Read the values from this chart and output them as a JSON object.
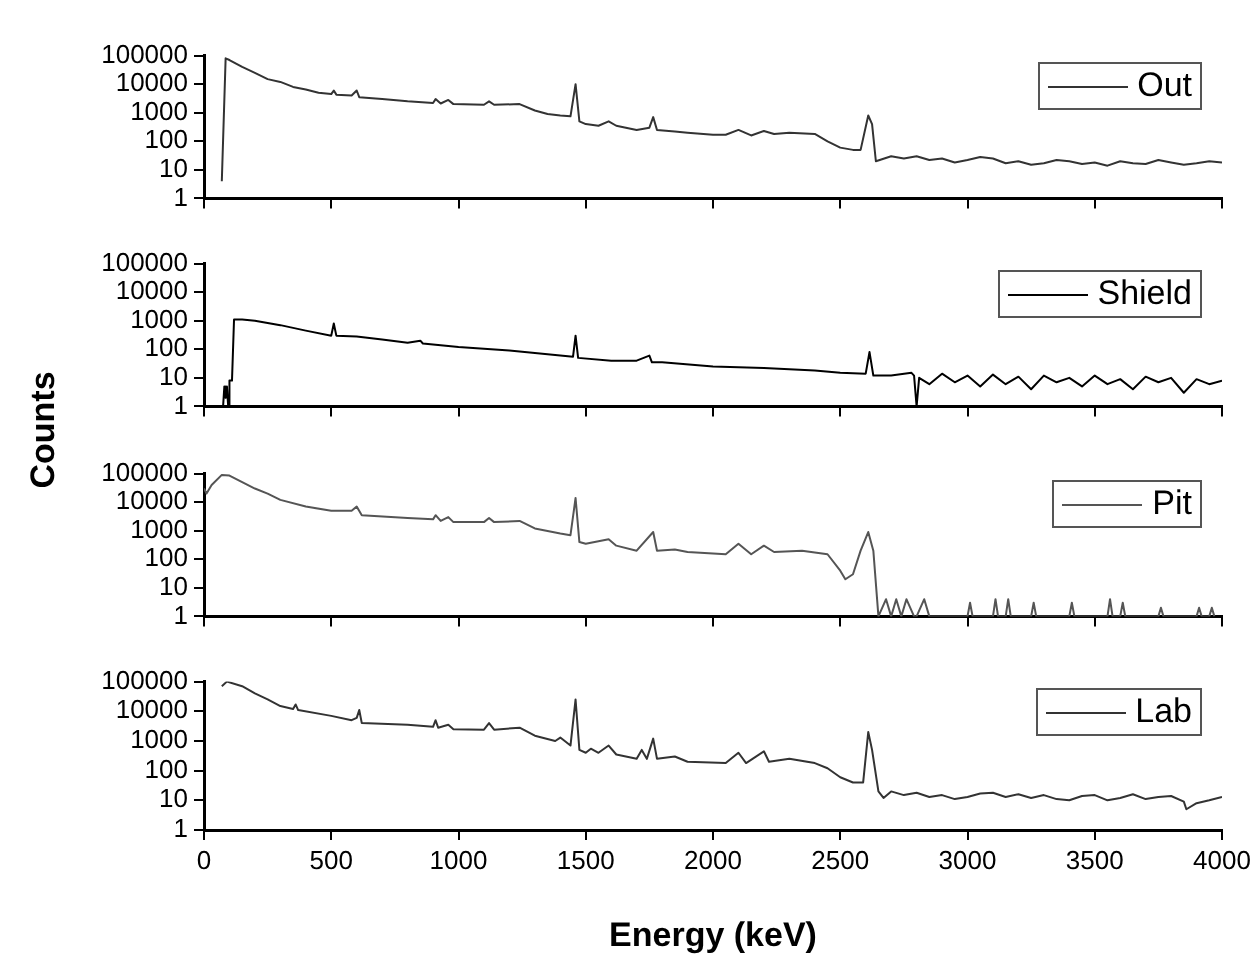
{
  "chart_data": [
    {
      "type": "line",
      "ylabel": "Counts",
      "xlim": [
        0,
        4000
      ],
      "xticks": [
        0,
        500,
        1000,
        1500,
        2000,
        2500,
        3000,
        3500,
        4000
      ],
      "ylim": [
        1,
        100000
      ],
      "yticks": [
        1,
        10,
        100,
        1000,
        10000,
        100000
      ],
      "log": "y",
      "legend": "top right",
      "tick_labels": "y",
      "marker": "none",
      "line_style": "solid",
      "series": [
        {
          "name": "Out",
          "color": "#333333",
          "x": [
            70,
            85,
            100,
            150,
            200,
            250,
            300,
            350,
            400,
            450,
            500,
            510,
            520,
            580,
            600,
            610,
            700,
            800,
            900,
            910,
            930,
            960,
            980,
            1100,
            1120,
            1140,
            1240,
            1300,
            1350,
            1400,
            1440,
            1460,
            1475,
            1500,
            1550,
            1590,
            1620,
            1700,
            1750,
            1765,
            1780,
            1850,
            1900,
            2000,
            2050,
            2100,
            2150,
            2200,
            2240,
            2300,
            2400,
            2450,
            2500,
            2550,
            2580,
            2610,
            2625,
            2640,
            2700,
            2750,
            2800,
            2850,
            2900,
            2950,
            3000,
            3050,
            3100,
            3150,
            3200,
            3250,
            3300,
            3350,
            3400,
            3450,
            3500,
            3550,
            3600,
            3650,
            3700,
            3750,
            3800,
            3850,
            3900,
            3950,
            4000
          ],
          "values": [
            4,
            80000,
            70000,
            40000,
            25000,
            15000,
            12000,
            8000,
            6500,
            5000,
            4500,
            6000,
            4300,
            4000,
            6000,
            3500,
            3000,
            2500,
            2200,
            3000,
            2100,
            2800,
            2000,
            1900,
            2500,
            1900,
            2000,
            1200,
            900,
            800,
            750,
            10000,
            500,
            400,
            350,
            500,
            350,
            250,
            300,
            700,
            250,
            220,
            200,
            170,
            170,
            250,
            160,
            230,
            180,
            200,
            180,
            100,
            60,
            50,
            50,
            800,
            400,
            20,
            30,
            25,
            30,
            22,
            25,
            18,
            22,
            28,
            25,
            17,
            20,
            15,
            17,
            22,
            20,
            16,
            18,
            14,
            20,
            17,
            16,
            22,
            18,
            15,
            17,
            20,
            18
          ]
        }
      ]
    },
    {
      "type": "line",
      "xlim": [
        0,
        4000
      ],
      "xticks": [
        0,
        500,
        1000,
        1500,
        2000,
        2500,
        3000,
        3500,
        4000
      ],
      "ylim": [
        1,
        100000
      ],
      "yticks": [
        1,
        10,
        100,
        1000,
        10000,
        100000
      ],
      "log": "y",
      "legend": "top right",
      "tick_labels": "y",
      "marker": "none",
      "line_style": "solid",
      "series": [
        {
          "name": "Shield",
          "color": "#000000",
          "x": [
            75,
            80,
            85,
            90,
            95,
            100,
            110,
            118,
            150,
            200,
            300,
            400,
            500,
            510,
            520,
            600,
            700,
            800,
            850,
            860,
            1000,
            1200,
            1400,
            1450,
            1460,
            1470,
            1600,
            1700,
            1750,
            1760,
            1800,
            2000,
            2200,
            2400,
            2500,
            2600,
            2615,
            2630,
            2700,
            2780,
            2790,
            2800,
            2810,
            2850,
            2900,
            2950,
            3000,
            3050,
            3100,
            3150,
            3200,
            3250,
            3300,
            3350,
            3400,
            3450,
            3500,
            3550,
            3600,
            3650,
            3700,
            3750,
            3800,
            3850,
            3900,
            3950,
            4000
          ],
          "values": [
            1,
            5,
            2,
            5,
            1,
            8,
            8,
            1100,
            1100,
            1000,
            700,
            450,
            300,
            800,
            300,
            280,
            220,
            170,
            200,
            160,
            120,
            90,
            60,
            55,
            300,
            50,
            40,
            40,
            60,
            35,
            35,
            25,
            22,
            18,
            15,
            14,
            80,
            12,
            12,
            15,
            12,
            1,
            10,
            6,
            14,
            7,
            12,
            5,
            13,
            6,
            11,
            4,
            12,
            7,
            10,
            5,
            12,
            6,
            9,
            4,
            11,
            7,
            10,
            3,
            9,
            6,
            8
          ]
        }
      ]
    },
    {
      "type": "line",
      "xlim": [
        0,
        4000
      ],
      "xticks": [
        0,
        500,
        1000,
        1500,
        2000,
        2500,
        3000,
        3500,
        4000
      ],
      "ylim": [
        1,
        100000
      ],
      "yticks": [
        1,
        10,
        100,
        1000,
        10000,
        100000
      ],
      "log": "y",
      "legend": "top right",
      "tick_labels": "y",
      "marker": "none",
      "line_style": "solid",
      "series": [
        {
          "name": "Pit",
          "color": "#555555",
          "x": [
            0,
            10,
            30,
            70,
            100,
            150,
            200,
            250,
            300,
            400,
            500,
            580,
            600,
            620,
            800,
            900,
            910,
            930,
            960,
            980,
            1100,
            1120,
            1140,
            1240,
            1300,
            1400,
            1440,
            1460,
            1475,
            1500,
            1590,
            1620,
            1700,
            1765,
            1780,
            1850,
            1900,
            2050,
            2100,
            2150,
            2200,
            2240,
            2350,
            2450,
            2500,
            2520,
            2550,
            2580,
            2610,
            2630,
            2650,
            2680,
            2700,
            2720,
            2740,
            2760,
            2790,
            2800,
            2830,
            2850,
            3000,
            3010,
            3020,
            3100,
            3110,
            3120,
            3150,
            3160,
            3170,
            3250,
            3260,
            3270,
            3400,
            3410,
            3420,
            3550,
            3560,
            3570,
            3600,
            3610,
            3620,
            3750,
            3760,
            3770,
            3900,
            3910,
            3920,
            3950,
            3960,
            3970
          ],
          "values": [
            30000,
            20000,
            40000,
            90000,
            85000,
            50000,
            30000,
            20000,
            12000,
            7000,
            5000,
            5000,
            7000,
            3500,
            2800,
            2500,
            3500,
            2200,
            3000,
            2000,
            2000,
            2800,
            2000,
            2200,
            1200,
            800,
            700,
            14000,
            400,
            350,
            500,
            300,
            200,
            900,
            200,
            220,
            180,
            150,
            350,
            150,
            300,
            180,
            200,
            150,
            40,
            20,
            30,
            200,
            900,
            200,
            1,
            4,
            1,
            4,
            1,
            4,
            1,
            1,
            4,
            1,
            1,
            3,
            1,
            1,
            4,
            1,
            1,
            4,
            1,
            1,
            3,
            1,
            1,
            3,
            1,
            1,
            4,
            1,
            1,
            3,
            1,
            1,
            2,
            1,
            1,
            2,
            1,
            1,
            2,
            1
          ]
        }
      ]
    },
    {
      "type": "line",
      "xlabel": "Energy (keV)",
      "xlim": [
        0,
        4000
      ],
      "xticks": [
        0,
        500,
        1000,
        1500,
        2000,
        2500,
        3000,
        3500,
        4000
      ],
      "ylim": [
        1,
        100000
      ],
      "yticks": [
        1,
        10,
        100,
        1000,
        10000,
        100000
      ],
      "log": "y",
      "legend": "top right",
      "marker": "none",
      "line_style": "solid",
      "series": [
        {
          "name": "Lab",
          "color": "#333333",
          "x": [
            70,
            90,
            150,
            200,
            250,
            300,
            350,
            360,
            370,
            500,
            580,
            600,
            610,
            620,
            800,
            900,
            910,
            920,
            960,
            980,
            1100,
            1120,
            1140,
            1240,
            1300,
            1380,
            1400,
            1440,
            1460,
            1475,
            1500,
            1520,
            1550,
            1590,
            1620,
            1700,
            1720,
            1740,
            1765,
            1780,
            1850,
            1900,
            2050,
            2100,
            2130,
            2200,
            2220,
            2300,
            2400,
            2450,
            2500,
            2550,
            2590,
            2610,
            2625,
            2650,
            2670,
            2700,
            2750,
            2800,
            2850,
            2900,
            2950,
            3000,
            3050,
            3100,
            3150,
            3200,
            3250,
            3300,
            3350,
            3400,
            3450,
            3500,
            3550,
            3600,
            3650,
            3700,
            3750,
            3800,
            3850,
            3860,
            3900,
            3950,
            4000
          ],
          "values": [
            70000,
            100000,
            70000,
            40000,
            25000,
            15000,
            12000,
            17000,
            11000,
            7000,
            5000,
            6000,
            11000,
            4000,
            3500,
            3000,
            5000,
            2800,
            3500,
            2500,
            2400,
            4000,
            2400,
            2800,
            1500,
            1000,
            1300,
            700,
            25000,
            500,
            400,
            550,
            400,
            700,
            350,
            250,
            500,
            250,
            1200,
            250,
            300,
            200,
            180,
            400,
            180,
            450,
            200,
            250,
            180,
            120,
            60,
            40,
            40,
            2000,
            500,
            20,
            12,
            20,
            15,
            18,
            13,
            15,
            11,
            13,
            17,
            18,
            13,
            16,
            12,
            15,
            11,
            10,
            14,
            15,
            10,
            12,
            16,
            11,
            13,
            14,
            9,
            5,
            8,
            10,
            13
          ]
        }
      ]
    }
  ]
}
